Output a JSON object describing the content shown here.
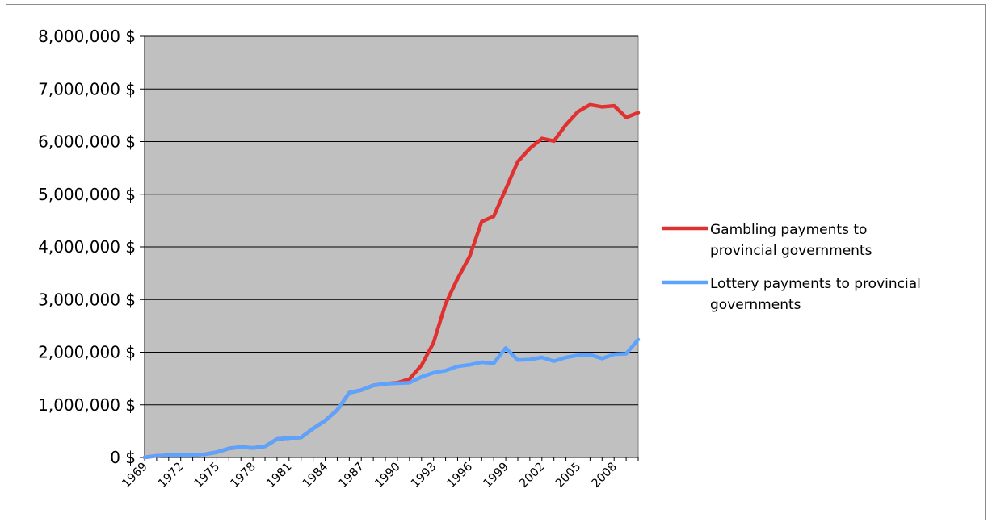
{
  "chart_data": {
    "type": "line",
    "title": "",
    "xlabel": "",
    "ylabel": "",
    "ylim": [
      0,
      8000000
    ],
    "yticks": [
      0,
      1000000,
      2000000,
      3000000,
      4000000,
      5000000,
      6000000,
      7000000,
      8000000
    ],
    "ytick_labels": [
      "0 $",
      "1,000,000 $",
      "2,000,000 $",
      "3,000,000 $",
      "4,000,000 $",
      "5,000,000 $",
      "6,000,000 $",
      "7,000,000 $",
      "8,000,000 $"
    ],
    "x": [
      1969,
      1970,
      1971,
      1972,
      1973,
      1974,
      1975,
      1976,
      1977,
      1978,
      1979,
      1980,
      1981,
      1982,
      1983,
      1984,
      1985,
      1986,
      1987,
      1988,
      1989,
      1990,
      1991,
      1992,
      1993,
      1994,
      1995,
      1996,
      1997,
      1998,
      1999,
      2000,
      2001,
      2002,
      2003,
      2004,
      2005,
      2006,
      2007,
      2008,
      2009,
      2010
    ],
    "xtick_labels": [
      "1969",
      "1972",
      "1975",
      "1978",
      "1981",
      "1984",
      "1987",
      "1990",
      "1993",
      "1996",
      "1999",
      "2002",
      "2005",
      "2008"
    ],
    "grid": true,
    "plot_background": "#c0c0c0",
    "legend_position": "right",
    "series": [
      {
        "name": "Gambling payments to provincial governments",
        "color": "#e03030",
        "values": [
          0,
          30000,
          40000,
          50000,
          50000,
          60000,
          100000,
          170000,
          200000,
          180000,
          210000,
          350000,
          370000,
          380000,
          550000,
          700000,
          900000,
          1230000,
          1280000,
          1370000,
          1400000,
          1420000,
          1490000,
          1750000,
          2180000,
          2920000,
          3400000,
          3820000,
          4480000,
          4580000,
          5100000,
          5620000,
          5870000,
          6060000,
          6010000,
          6320000,
          6570000,
          6700000,
          6660000,
          6680000,
          6460000,
          6550000
        ]
      },
      {
        "name": "Lottery payments to provincial governments",
        "color": "#5ba3ff",
        "values": [
          0,
          30000,
          40000,
          50000,
          50000,
          60000,
          100000,
          170000,
          200000,
          180000,
          210000,
          350000,
          370000,
          380000,
          550000,
          700000,
          900000,
          1230000,
          1280000,
          1370000,
          1400000,
          1410000,
          1420000,
          1530000,
          1610000,
          1650000,
          1730000,
          1760000,
          1810000,
          1790000,
          2080000,
          1850000,
          1860000,
          1900000,
          1830000,
          1900000,
          1940000,
          1950000,
          1880000,
          1960000,
          1970000,
          2240000
        ]
      }
    ]
  }
}
